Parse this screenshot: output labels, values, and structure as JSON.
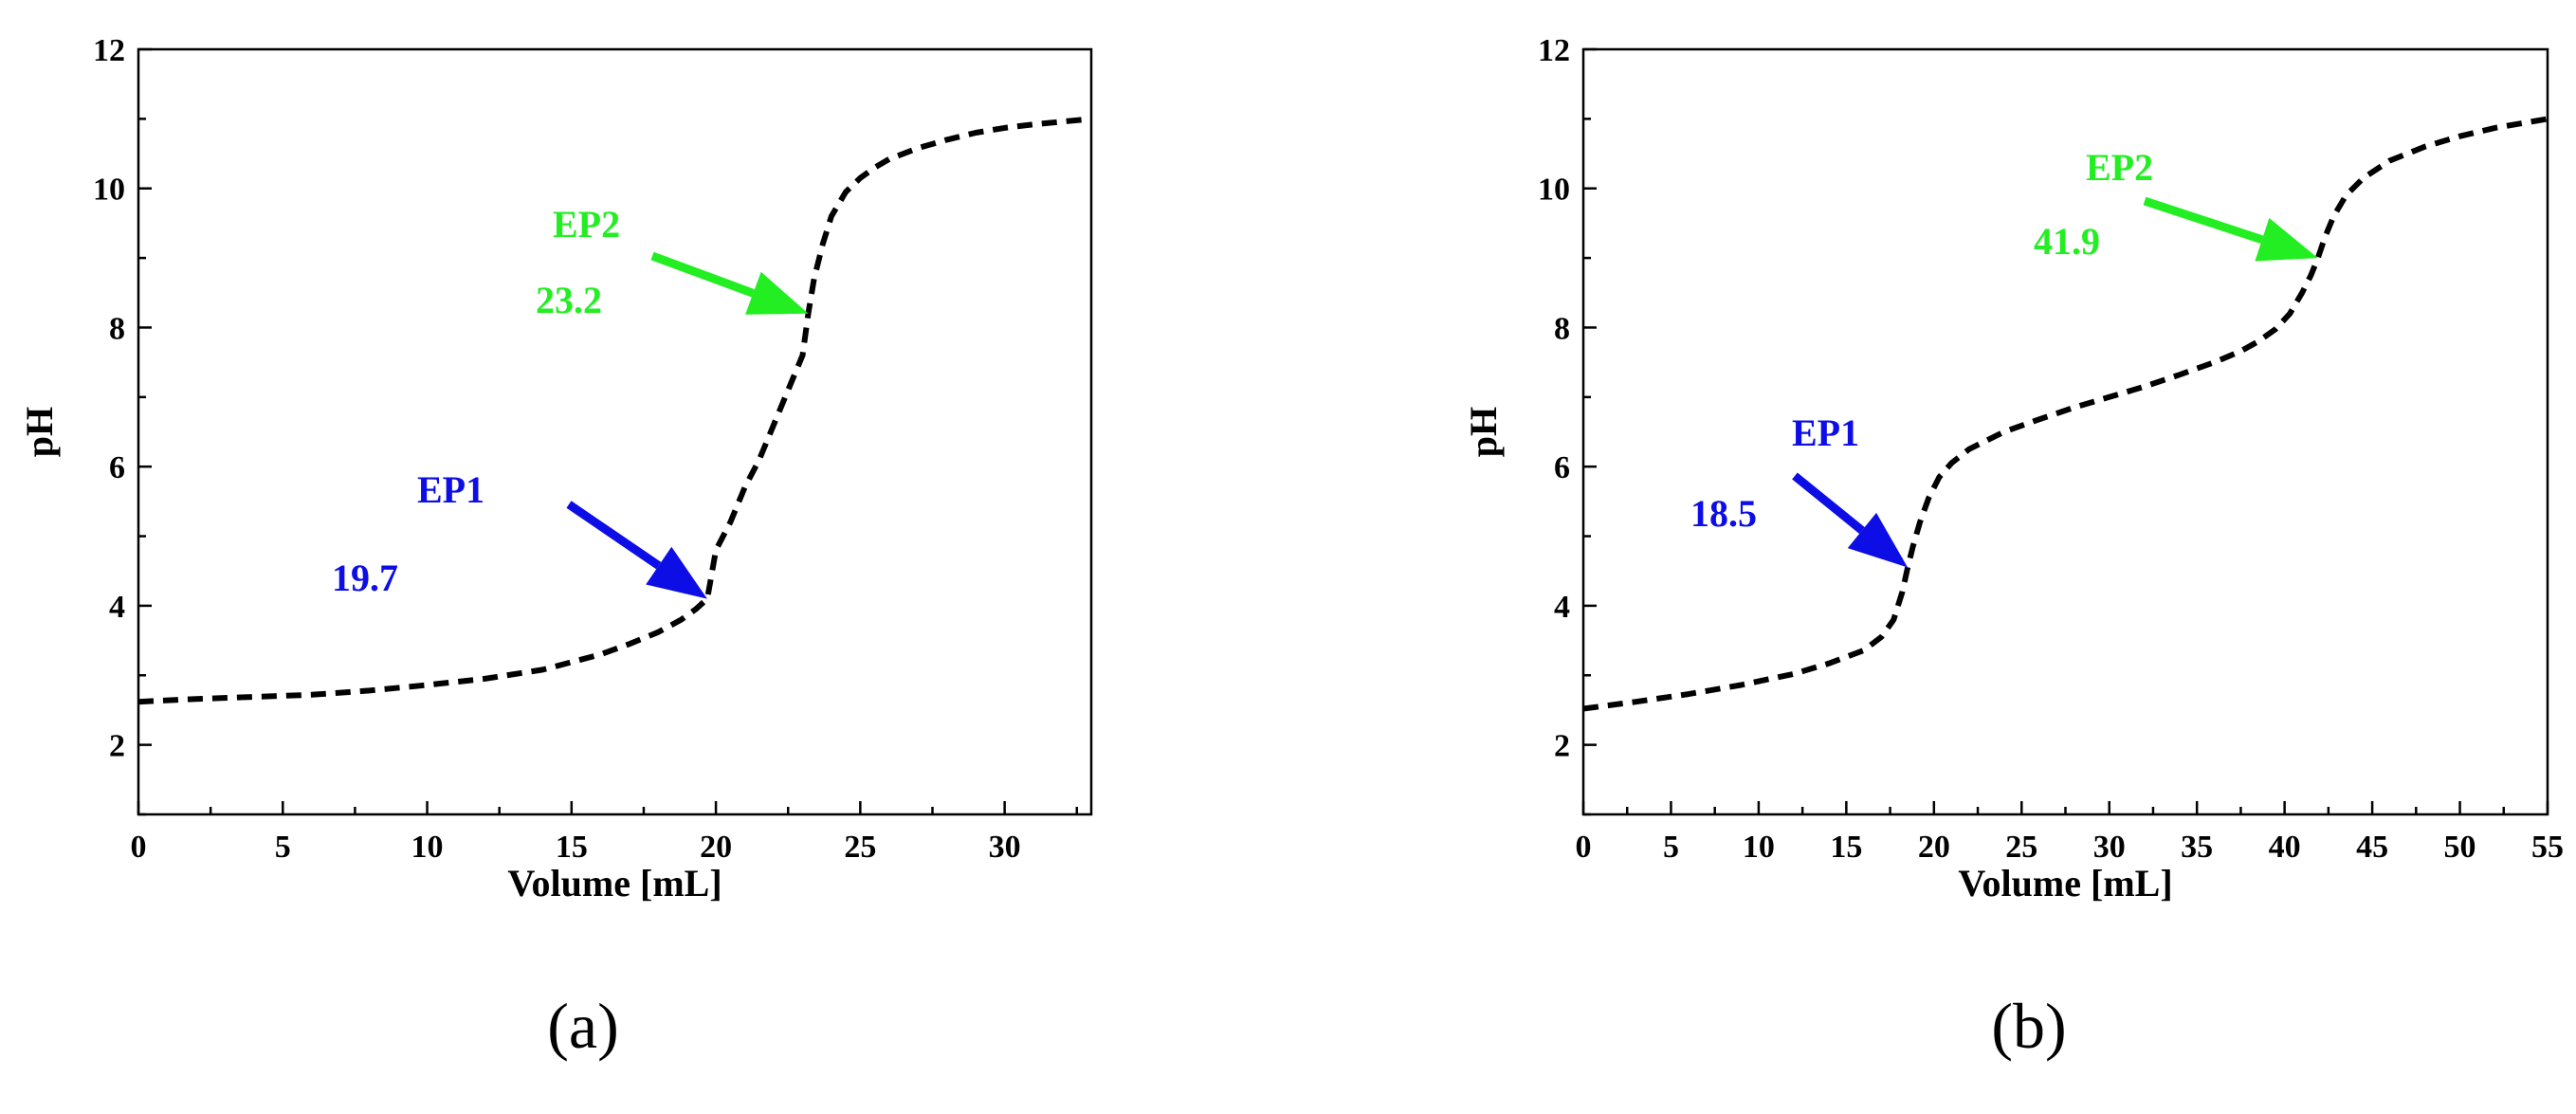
{
  "chart_data": [
    {
      "type": "line",
      "panel_label": "(a)",
      "xlabel": "Volume [mL]",
      "ylabel": "pH",
      "xlim": [
        0,
        33
      ],
      "ylim": [
        1,
        12
      ],
      "xticks": [
        0,
        5,
        10,
        15,
        20,
        25,
        30
      ],
      "yticks": [
        2,
        4,
        6,
        8,
        10,
        12
      ],
      "xtick_labels": [
        "0",
        "5",
        "10",
        "15",
        "20",
        "25",
        "30"
      ],
      "ytick_labels": [
        "2",
        "4",
        "6",
        "8",
        "10",
        "12"
      ],
      "grid": false,
      "line_style": "dashed",
      "line_color": "#000000",
      "series": [
        {
          "x": [
            0,
            2,
            4,
            6,
            8,
            10,
            12,
            14,
            16,
            17,
            18,
            18.8,
            19.3,
            19.7,
            20.0,
            20.5,
            21.0,
            21.5,
            22.0,
            22.5,
            23.0,
            23.2,
            23.4,
            23.7,
            24.0,
            24.5,
            25.0,
            25.5,
            26.0,
            27.0,
            28.0,
            29.0,
            30.0,
            31.0,
            32.0,
            33.0
          ],
          "y": [
            2.62,
            2.66,
            2.69,
            2.72,
            2.78,
            2.86,
            2.95,
            3.08,
            3.3,
            3.45,
            3.62,
            3.8,
            3.95,
            4.1,
            4.8,
            5.2,
            5.7,
            6.1,
            6.6,
            7.1,
            7.6,
            8.2,
            8.7,
            9.2,
            9.6,
            9.95,
            10.15,
            10.3,
            10.42,
            10.58,
            10.7,
            10.8,
            10.87,
            10.92,
            10.96,
            11.0
          ]
        }
      ],
      "annotations": [
        {
          "label": "EP1",
          "value": "19.7",
          "x": 19.7,
          "y": 4.1,
          "color": "#0d0de6"
        },
        {
          "label": "EP2",
          "value": "23.2",
          "x": 23.2,
          "y": 8.2,
          "color": "#22ee22"
        }
      ]
    },
    {
      "type": "line",
      "panel_label": "(b)",
      "xlabel": "Volume [mL]",
      "ylabel": "pH",
      "xlim": [
        0,
        55
      ],
      "ylim": [
        1,
        12
      ],
      "xticks": [
        0,
        5,
        10,
        15,
        20,
        25,
        30,
        35,
        40,
        45,
        50,
        55
      ],
      "yticks": [
        2,
        4,
        6,
        8,
        10,
        12
      ],
      "xtick_labels": [
        "0",
        "5",
        "10",
        "15",
        "20",
        "25",
        "30",
        "35",
        "40",
        "45",
        "50",
        "55"
      ],
      "ytick_labels": [
        "2",
        "4",
        "6",
        "8",
        "10",
        "12"
      ],
      "grid": false,
      "line_style": "dashed",
      "line_color": "#000000",
      "series": [
        {
          "x": [
            0,
            3,
            6,
            9,
            12,
            14,
            16,
            17,
            17.7,
            18.2,
            18.5,
            18.8,
            19.2,
            19.7,
            20.3,
            21.0,
            22.0,
            24.0,
            26.0,
            28.0,
            30.0,
            32.0,
            34.0,
            36.0,
            37.5,
            38.5,
            39.5,
            40.3,
            41.0,
            41.5,
            41.9,
            42.3,
            42.8,
            43.5,
            44.5,
            46.0,
            48.0,
            50.0,
            52.0,
            55.0
          ],
          "y": [
            2.52,
            2.62,
            2.73,
            2.86,
            3.02,
            3.17,
            3.36,
            3.55,
            3.8,
            4.2,
            4.55,
            4.85,
            5.2,
            5.55,
            5.85,
            6.05,
            6.25,
            6.5,
            6.68,
            6.85,
            7.0,
            7.15,
            7.32,
            7.5,
            7.66,
            7.8,
            7.98,
            8.2,
            8.5,
            8.75,
            9.0,
            9.3,
            9.6,
            9.9,
            10.15,
            10.4,
            10.6,
            10.75,
            10.87,
            11.0
          ]
        }
      ],
      "annotations": [
        {
          "label": "EP1",
          "value": "18.5",
          "x": 18.5,
          "y": 4.55,
          "color": "#0d0de6"
        },
        {
          "label": "EP2",
          "value": "41.9",
          "x": 41.9,
          "y": 9.0,
          "color": "#22ee22"
        }
      ]
    }
  ]
}
